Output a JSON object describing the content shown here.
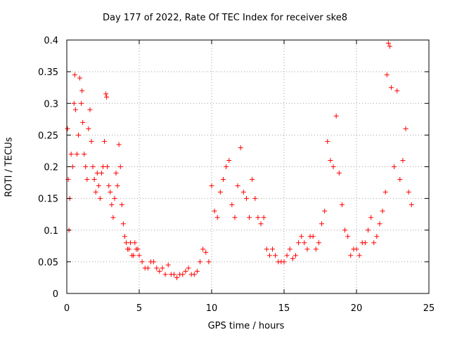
{
  "chart_data": {
    "type": "scatter",
    "title": "Day 177 of 2022, Rate Of TEC Index for receiver ske8",
    "xlabel": "GPS time / hours",
    "ylabel": "ROTI / TECUs",
    "xlim": [
      0,
      25
    ],
    "ylim": [
      0,
      0.4
    ],
    "xticks": [
      "0",
      "5",
      "10",
      "15",
      "20",
      "25"
    ],
    "yticks": [
      "0",
      "0.05",
      "0.1",
      "0.15",
      "0.2",
      "0.25",
      "0.3",
      "0.35",
      "0.4"
    ],
    "grid": true,
    "legend": "none",
    "marker": "+",
    "color": "#ff0000",
    "series": [
      {
        "x": [
          0.05,
          0.1,
          0.15,
          0.2,
          0.3,
          0.4,
          0.5,
          0.55,
          0.6,
          0.7,
          0.8,
          0.9,
          1.0,
          1.05,
          1.1,
          1.2,
          1.3,
          1.4,
          1.5,
          1.6,
          1.7,
          1.8,
          1.9,
          2.0,
          2.1,
          2.2,
          2.3,
          2.4,
          2.5,
          2.6,
          2.7,
          2.75,
          2.8,
          2.9,
          3.0,
          3.1,
          3.2,
          3.3,
          3.4,
          3.5,
          3.6,
          3.7,
          3.8,
          3.9,
          4.0,
          4.1,
          4.2,
          4.3,
          4.4,
          4.5,
          4.6,
          4.7,
          4.8,
          4.9,
          5.0,
          5.2,
          5.4,
          5.6,
          5.8,
          6.0,
          6.2,
          6.4,
          6.6,
          6.8,
          7.0,
          7.2,
          7.4,
          7.6,
          7.8,
          8.0,
          8.2,
          8.4,
          8.6,
          8.8,
          9.0,
          9.2,
          9.4,
          9.6,
          9.8,
          10.0,
          10.2,
          10.4,
          10.6,
          10.8,
          11.0,
          11.2,
          11.4,
          11.6,
          11.8,
          12.0,
          12.2,
          12.4,
          12.6,
          12.8,
          13.0,
          13.2,
          13.4,
          13.6,
          13.8,
          14.0,
          14.2,
          14.4,
          14.6,
          14.8,
          15.0,
          15.2,
          15.4,
          15.6,
          15.8,
          16.0,
          16.2,
          16.4,
          16.6,
          16.8,
          17.0,
          17.2,
          17.4,
          17.6,
          17.8,
          18.0,
          18.2,
          18.4,
          18.6,
          18.8,
          19.0,
          19.2,
          19.4,
          19.6,
          19.8,
          20.0,
          20.2,
          20.4,
          20.6,
          20.8,
          21.0,
          21.2,
          21.4,
          21.6,
          21.8,
          22.0,
          22.1,
          22.2,
          22.3,
          22.4,
          22.6,
          22.8,
          23.0,
          23.2,
          23.4,
          23.6,
          23.8
        ],
        "y": [
          0.26,
          0.18,
          0.1,
          0.15,
          0.22,
          0.2,
          0.3,
          0.345,
          0.29,
          0.22,
          0.25,
          0.34,
          0.3,
          0.32,
          0.27,
          0.22,
          0.2,
          0.18,
          0.26,
          0.29,
          0.24,
          0.2,
          0.18,
          0.16,
          0.19,
          0.17,
          0.15,
          0.19,
          0.2,
          0.24,
          0.315,
          0.31,
          0.2,
          0.17,
          0.16,
          0.14,
          0.12,
          0.15,
          0.19,
          0.17,
          0.235,
          0.2,
          0.14,
          0.11,
          0.09,
          0.08,
          0.07,
          0.07,
          0.08,
          0.06,
          0.06,
          0.08,
          0.07,
          0.07,
          0.06,
          0.05,
          0.04,
          0.04,
          0.05,
          0.05,
          0.04,
          0.035,
          0.04,
          0.03,
          0.045,
          0.03,
          0.03,
          0.025,
          0.03,
          0.03,
          0.035,
          0.04,
          0.03,
          0.03,
          0.035,
          0.05,
          0.07,
          0.065,
          0.05,
          0.17,
          0.13,
          0.12,
          0.16,
          0.18,
          0.2,
          0.21,
          0.14,
          0.12,
          0.17,
          0.23,
          0.16,
          0.15,
          0.12,
          0.18,
          0.15,
          0.12,
          0.11,
          0.12,
          0.07,
          0.06,
          0.07,
          0.06,
          0.05,
          0.05,
          0.05,
          0.06,
          0.07,
          0.055,
          0.06,
          0.08,
          0.09,
          0.08,
          0.07,
          0.09,
          0.09,
          0.07,
          0.08,
          0.11,
          0.13,
          0.24,
          0.21,
          0.2,
          0.28,
          0.19,
          0.14,
          0.1,
          0.09,
          0.06,
          0.07,
          0.07,
          0.06,
          0.08,
          0.08,
          0.1,
          0.12,
          0.08,
          0.09,
          0.11,
          0.13,
          0.16,
          0.345,
          0.395,
          0.39,
          0.325,
          0.2,
          0.32,
          0.18,
          0.21,
          0.26,
          0.16,
          0.14
        ]
      }
    ]
  }
}
